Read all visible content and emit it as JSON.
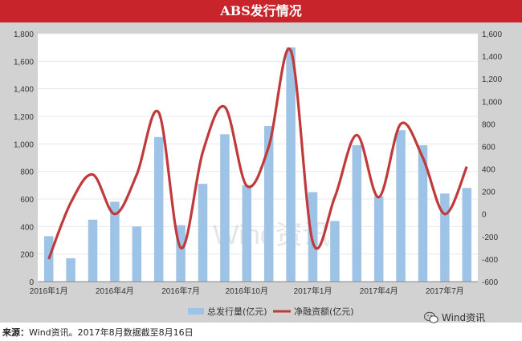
{
  "header": {
    "title": "ABS发行情况"
  },
  "footer": {
    "source_label": "来源：",
    "source_text": "Wind资讯。2017年8月数据截至8月16日"
  },
  "wechat": {
    "label": "Wind资讯"
  },
  "watermark": {
    "text": "Wind资讯"
  },
  "colors": {
    "bar": "#9dc3e6",
    "line": "#c0393b",
    "title_bg": "#c8242b",
    "panel": "#d2d2d2",
    "grid": "#e8e8e8"
  },
  "chart_data": {
    "type": "bar",
    "title": "ABS发行情况",
    "x": [
      "2016年1月",
      "2016年2月",
      "2016年3月",
      "2016年4月",
      "2016年5月",
      "2016年6月",
      "2016年7月",
      "2016年8月",
      "2016年9月",
      "2016年10月",
      "2016年11月",
      "2016年12月",
      "2017年1月",
      "2017年2月",
      "2017年3月",
      "2017年4月",
      "2017年5月",
      "2017年6月",
      "2017年7月",
      "2017年8月"
    ],
    "x_tick_labels": [
      "2016年1月",
      "2016年4月",
      "2016年7月",
      "2016年10月",
      "2017年1月",
      "2017年4月",
      "2017年7月"
    ],
    "series": [
      {
        "name": "总发行量(亿元)",
        "type": "bar",
        "axis": "left",
        "values": [
          330,
          170,
          450,
          580,
          400,
          1050,
          410,
          710,
          1070,
          700,
          1130,
          1700,
          650,
          440,
          990,
          620,
          1100,
          990,
          640,
          680
        ]
      },
      {
        "name": "净融资额(亿元)",
        "type": "line",
        "axis": "right",
        "values": [
          -400,
          100,
          350,
          0,
          350,
          900,
          -300,
          550,
          950,
          250,
          600,
          1450,
          -250,
          150,
          700,
          150,
          800,
          500,
          0,
          420
        ]
      }
    ],
    "y_left": {
      "ylim": [
        0,
        1800
      ],
      "ticks": [
        "0",
        "200",
        "400",
        "600",
        "800",
        "1,000",
        "1,200",
        "1,400",
        "1,600",
        "1,800"
      ]
    },
    "y_right": {
      "ylim": [
        -600,
        1600
      ],
      "ticks": [
        "-600",
        "-400",
        "-200",
        "0",
        "200",
        "400",
        "600",
        "800",
        "1,000",
        "1,200",
        "1,400",
        "1,600"
      ]
    },
    "grid": true,
    "legend": "bottom"
  }
}
